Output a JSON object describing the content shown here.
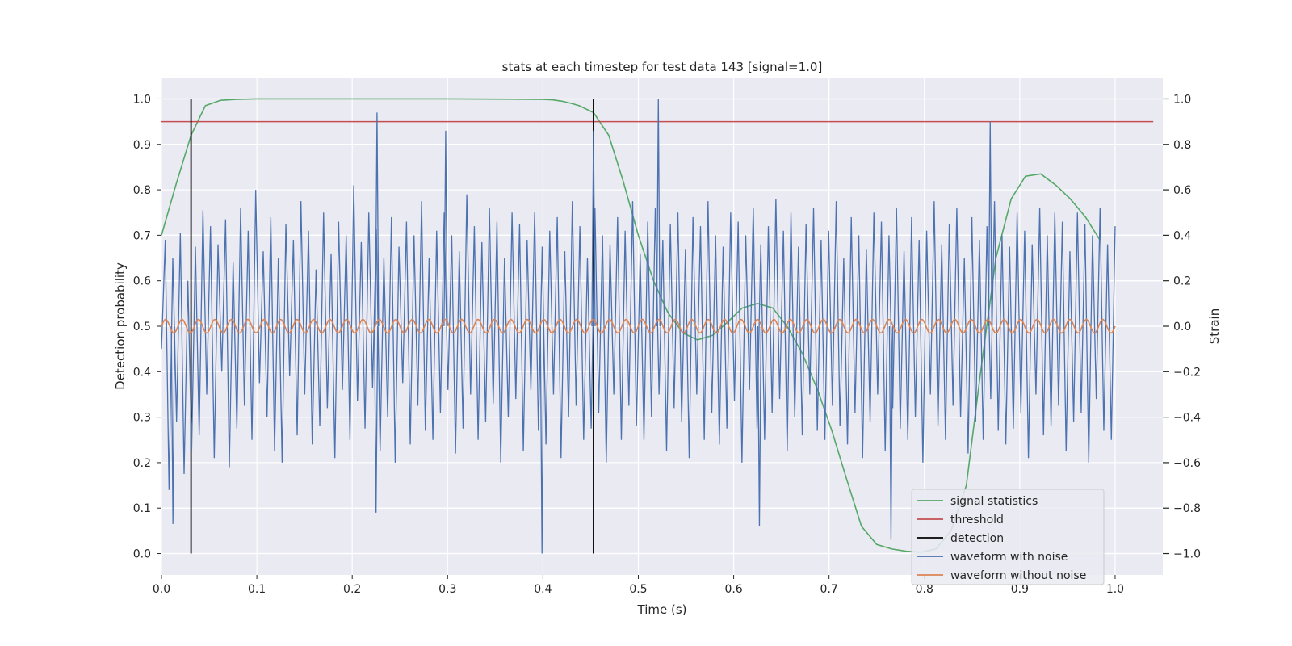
{
  "chart_data": {
    "type": "line",
    "title": "stats at each timestep for test data 143 [signal=1.0]",
    "xlabel": "Time (s)",
    "ylabel_left": "Detection probability",
    "ylabel_right": "Strain",
    "xlim": [
      0.0,
      1.05
    ],
    "ylim_left": [
      -0.047,
      1.047
    ],
    "ylim_right": [
      -1.094,
      1.094
    ],
    "grid": true,
    "legend_placement": "lower-right",
    "xticks": [
      "0.0",
      "0.1",
      "0.2",
      "0.3",
      "0.4",
      "0.5",
      "0.6",
      "0.7",
      "0.8",
      "0.9",
      "1.0"
    ],
    "yticks_left": [
      "0.0",
      "0.1",
      "0.2",
      "0.3",
      "0.4",
      "0.5",
      "0.6",
      "0.7",
      "0.8",
      "0.9",
      "1.0"
    ],
    "yticks_right": [
      "−1.0",
      "−0.8",
      "−0.6",
      "−0.4",
      "−0.2",
      "0.0",
      "0.2",
      "0.4",
      "0.6",
      "0.8",
      "1.0"
    ],
    "colors": {
      "signal": "#55a868",
      "threshold": "#c44e52",
      "detection": "#000000",
      "noisy": "#4c72b0",
      "clean": "#dd8452",
      "axes_bg": "#eaeaf2",
      "grid": "#ffffff"
    },
    "threshold": 0.95,
    "detections": [
      0.031,
      0.453
    ],
    "signal_statistics": {
      "name": "signal statistics",
      "x": [
        0.0,
        0.015,
        0.031,
        0.046,
        0.062,
        0.078,
        0.1,
        0.2,
        0.3,
        0.4,
        0.41,
        0.42,
        0.43,
        0.438,
        0.453,
        0.469,
        0.484,
        0.5,
        0.516,
        0.531,
        0.547,
        0.562,
        0.578,
        0.594,
        0.609,
        0.625,
        0.641,
        0.656,
        0.672,
        0.688,
        0.703,
        0.719,
        0.734,
        0.75,
        0.766,
        0.781,
        0.797,
        0.812,
        0.828,
        0.844,
        0.859,
        0.875,
        0.891,
        0.906,
        0.922,
        0.938,
        0.953,
        0.969,
        0.984
      ],
      "y": [
        0.7,
        0.81,
        0.92,
        0.985,
        0.997,
        0.999,
        1.0,
        1.0,
        1.0,
        0.999,
        0.998,
        0.995,
        0.99,
        0.985,
        0.97,
        0.92,
        0.82,
        0.7,
        0.6,
        0.53,
        0.485,
        0.47,
        0.48,
        0.51,
        0.54,
        0.55,
        0.54,
        0.5,
        0.44,
        0.36,
        0.27,
        0.16,
        0.06,
        0.02,
        0.01,
        0.005,
        0.003,
        0.01,
        0.05,
        0.15,
        0.4,
        0.65,
        0.78,
        0.83,
        0.835,
        0.81,
        0.78,
        0.74,
        0.69
      ]
    },
    "waveform_without_noise": {
      "name": "waveform without noise",
      "amplitude": 0.03,
      "num_cycles": 58,
      "x_end": 1.0
    },
    "waveform_with_noise": {
      "name": "waveform with noise",
      "x_end": 1.0,
      "amplitude": 0.45,
      "y": [
        -0.1,
        0.38,
        -0.72,
        0.3,
        -0.42,
        0.41,
        -0.65,
        0.2,
        -0.55,
        0.35,
        -0.48,
        0.51,
        -0.3,
        0.44,
        -0.58,
        0.36,
        -0.2,
        0.47,
        -0.62,
        0.28,
        -0.45,
        0.52,
        -0.35,
        0.42,
        -0.5,
        0.6,
        -0.25,
        0.33,
        -0.4,
        0.48,
        -0.55,
        0.3,
        -0.6,
        0.45,
        -0.22,
        0.38,
        -0.48,
        0.55,
        -0.3,
        0.42,
        -0.52,
        0.25,
        -0.44,
        0.5,
        -0.36,
        0.32,
        -0.58,
        0.46,
        -0.28,
        0.4,
        -0.5,
        0.62,
        -0.33,
        0.37,
        -0.45,
        0.5,
        -0.27,
        0.43,
        -0.55,
        0.3,
        -0.4,
        0.48,
        -0.6,
        0.35,
        -0.25,
        0.46,
        -0.52,
        0.4,
        -0.35,
        0.55,
        -0.46,
        0.3,
        -0.5,
        0.42,
        -0.38,
        0.5,
        -0.28,
        0.4,
        -0.56,
        0.33,
        -0.45,
        0.58,
        -0.3,
        0.44,
        -0.5,
        0.37,
        -0.42,
        0.52,
        -0.34,
        0.46,
        -0.6,
        0.3,
        -0.4,
        0.5,
        -0.32,
        0.45,
        -0.55,
        0.38,
        -0.28,
        0.5,
        -0.46,
        0.35,
        -0.52,
        0.42,
        -0.3,
        0.48,
        -0.58,
        0.33,
        -0.4,
        0.55,
        -0.35,
        0.44,
        -0.5,
        0.3,
        -0.45,
        0.52,
        -0.38,
        0.4,
        -0.6,
        0.36,
        -0.3,
        0.48,
        -0.5,
        0.42,
        -0.35,
        0.55,
        -0.44,
        0.32,
        -0.5,
        0.46,
        -0.4,
        0.52,
        -0.3,
        0.38,
        -0.55,
        0.45,
        -0.36,
        0.5,
        -0.42,
        0.34,
        -0.58,
        0.48,
        -0.3,
        0.44,
        -0.5,
        0.55,
        -0.38,
        0.4,
        -0.52,
        0.35,
        -0.45,
        0.5,
        -0.33,
        0.46,
        -0.6,
        0.4,
        -0.28,
        0.52,
        -0.45,
        0.36,
        -0.5,
        0.44,
        -0.38,
        0.56,
        -0.32,
        0.42,
        -0.55,
        0.5,
        -0.4,
        0.35,
        -0.48,
        0.45,
        -0.3,
        0.52,
        -0.46,
        0.38,
        -0.5,
        0.42,
        -0.35,
        0.55,
        -0.44,
        0.3,
        -0.52,
        0.48,
        -0.38,
        0.4,
        -0.58,
        0.34,
        -0.42,
        0.5,
        -0.3,
        0.46,
        -0.55,
        0.4,
        -0.36,
        0.52,
        -0.45,
        0.33,
        -0.5,
        0.48,
        -0.4,
        0.38,
        -0.6,
        0.42,
        -0.3,
        0.55,
        -0.44,
        0.36,
        -0.5,
        0.45,
        -0.35,
        0.52,
        -0.4,
        0.3,
        -0.56,
        0.48,
        -0.42,
        0.38,
        -0.5,
        0.44,
        -0.32,
        0.55,
        -0.46,
        0.4,
        -0.52,
        0.35,
        -0.45,
        0.5,
        -0.38,
        0.42,
        -0.58,
        0.36,
        -0.3,
        0.52,
        -0.48,
        0.4,
        -0.44,
        0.5,
        -0.35,
        0.46,
        -0.55,
        0.33,
        -0.42,
        0.5,
        -0.38,
        0.45,
        -0.6,
        0.4,
        -0.32,
        0.52,
        -0.46,
        0.36,
        -0.5,
        0.44
      ]
    },
    "spikes": [
      {
        "x": 0.226,
        "y": 0.94
      },
      {
        "x": 0.298,
        "y": 0.86
      },
      {
        "x": 0.399,
        "y": -1.0
      },
      {
        "x": 0.453,
        "y": 0.86
      },
      {
        "x": 0.521,
        "y": 1.0
      },
      {
        "x": 0.869,
        "y": 0.9
      },
      {
        "x": 0.225,
        "y": -0.82
      },
      {
        "x": 0.012,
        "y": -0.87
      },
      {
        "x": 0.627,
        "y": -0.88
      },
      {
        "x": 0.765,
        "y": -0.94
      }
    ],
    "legend": [
      {
        "label": "signal statistics",
        "color_key": "signal"
      },
      {
        "label": "threshold",
        "color_key": "threshold"
      },
      {
        "label": "detection",
        "color_key": "detection"
      },
      {
        "label": "waveform with noise",
        "color_key": "noisy"
      },
      {
        "label": "waveform without noise",
        "color_key": "clean"
      }
    ]
  }
}
